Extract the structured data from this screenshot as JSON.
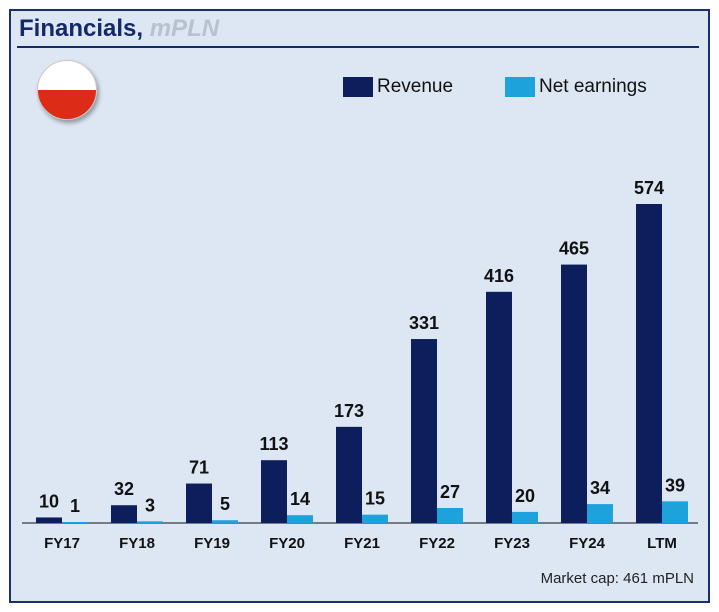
{
  "title": {
    "main": "Financials,",
    "unit": "mPLN"
  },
  "flag": {
    "top_color": "#ffffff",
    "bottom_color": "#dc2b16"
  },
  "legend": {
    "revenue": {
      "label": "Revenue",
      "color": "#0c1f5c"
    },
    "net_earnings": {
      "label": "Net earnings",
      "color": "#1ea2dc"
    }
  },
  "footnote": "Market cap: 461 mPLN",
  "chart_data": {
    "type": "bar",
    "categories": [
      "FY17",
      "FY18",
      "FY19",
      "FY20",
      "FY21",
      "FY22",
      "FY23",
      "FY24",
      "LTM"
    ],
    "series": [
      {
        "name": "Revenue",
        "color": "#0c1f5c",
        "values": [
          10,
          32,
          71,
          113,
          173,
          331,
          416,
          465,
          574
        ]
      },
      {
        "name": "Net earnings",
        "color": "#1ea2dc",
        "values": [
          1,
          3,
          5,
          14,
          15,
          27,
          20,
          34,
          39
        ]
      }
    ],
    "ylim": [
      0,
      574
    ],
    "grid": false,
    "legend_position": "top-right"
  }
}
